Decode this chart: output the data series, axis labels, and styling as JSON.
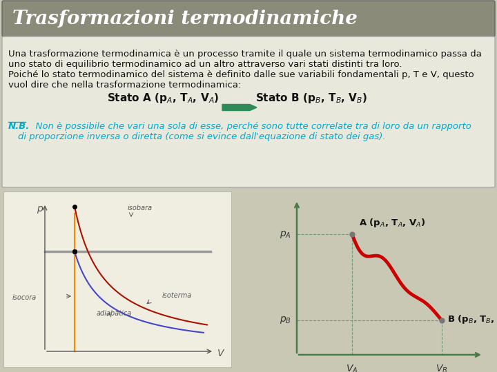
{
  "title": "Trasformazioni termodinamiche",
  "title_bg": "#8B8B7A",
  "title_color": "#FFFFFF",
  "title_fontsize": 20,
  "body_bg": "#E8E8DC",
  "body_border": "#AAAAAA",
  "text1": "Una trasformazione termodinamica è un processo tramite il quale un sistema termodinamico passa da",
  "text2": "uno stato di equilibrio termodinamico ad un altro attraverso vari stati distinti tra loro.",
  "text3": "Poiché lo stato termodinamico del sistema è definito dalle sue variabili fondamentali p, T e V, questo",
  "text4": "vuol dire che nella trasformazione termodinamica:",
  "nb_label": "N.B.",
  "nb_text": "  Non è possibile che vari una sola di esse, perché sono tutte correlate tra di loro da un rapporto",
  "nb_text2": "di proporzione inversa o diretta (come si evince dall'equazione di stato dei gas).",
  "nb_color": "#00AACC",
  "arrow_color": "#2E8B57",
  "page_bg": "#C8C8B4",
  "stato_a_label": "Stato A (p",
  "stato_b_label": "Stato B (p"
}
